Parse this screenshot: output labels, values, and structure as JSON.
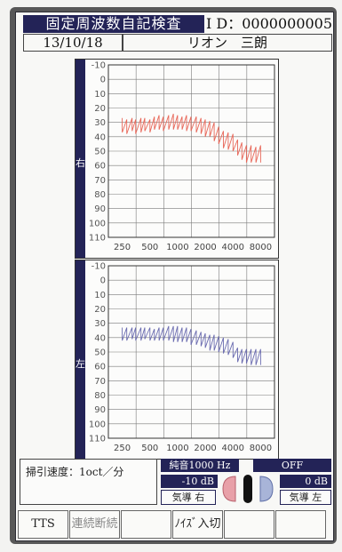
{
  "header": {
    "title": "固定周波数自記検査",
    "id_text": "I D：0000000005",
    "date": "13/10/18",
    "patient_name": "リオン　三朗"
  },
  "audiogram": {
    "y_ticks": [
      "-10",
      "0",
      "10",
      "20",
      "30",
      "40",
      "50",
      "60",
      "70",
      "80",
      "90",
      "100",
      "110"
    ],
    "x_ticks": [
      "250",
      "500",
      "1000",
      "2000",
      "4000",
      "8000"
    ],
    "right_ear": {
      "label": "右",
      "color": "#e8685a"
    },
    "left_ear": {
      "label": "左",
      "color": "#6b6cb0"
    }
  },
  "chart_data": [
    {
      "type": "line",
      "ear": "右",
      "x_categories": [
        "250",
        "500",
        "1000",
        "2000",
        "4000",
        "8000"
      ],
      "ylim": [
        -10,
        115
      ],
      "y_inverted": true,
      "series": [
        {
          "values": [
            [
              250,
              27
            ],
            [
              250,
              37
            ],
            [
              280,
              28
            ],
            [
              280,
              38
            ],
            [
              320,
              27
            ],
            [
              320,
              36
            ],
            [
              350,
              28
            ],
            [
              350,
              38
            ],
            [
              400,
              27
            ],
            [
              400,
              37
            ],
            [
              440,
              27
            ],
            [
              440,
              36
            ],
            [
              500,
              28
            ],
            [
              500,
              37
            ],
            [
              560,
              26
            ],
            [
              560,
              35
            ],
            [
              630,
              25
            ],
            [
              630,
              35
            ],
            [
              700,
              26
            ],
            [
              700,
              36
            ],
            [
              800,
              25
            ],
            [
              800,
              35
            ],
            [
              900,
              24
            ],
            [
              900,
              35
            ],
            [
              1000,
              25
            ],
            [
              1000,
              35
            ],
            [
              1120,
              26
            ],
            [
              1120,
              35
            ],
            [
              1250,
              25
            ],
            [
              1250,
              36
            ],
            [
              1400,
              26
            ],
            [
              1400,
              36
            ],
            [
              1600,
              26
            ],
            [
              1600,
              37
            ],
            [
              1800,
              27
            ],
            [
              1800,
              38
            ],
            [
              2000,
              28
            ],
            [
              2000,
              40
            ],
            [
              2240,
              29
            ],
            [
              2240,
              40
            ],
            [
              2500,
              30
            ],
            [
              2500,
              43
            ],
            [
              2800,
              33
            ],
            [
              2800,
              45
            ],
            [
              3150,
              36
            ],
            [
              3150,
              48
            ],
            [
              3550,
              37
            ],
            [
              3550,
              49
            ],
            [
              4000,
              38
            ],
            [
              4000,
              50
            ],
            [
              4500,
              42
            ],
            [
              4500,
              53
            ],
            [
              5000,
              44
            ],
            [
              5000,
              56
            ],
            [
              5600,
              46
            ],
            [
              5600,
              58
            ],
            [
              6300,
              46
            ],
            [
              6300,
              58
            ],
            [
              7100,
              47
            ],
            [
              7100,
              58
            ],
            [
              8000,
              46
            ],
            [
              8000,
              58
            ]
          ]
        }
      ]
    },
    {
      "type": "line",
      "ear": "左",
      "x_categories": [
        "250",
        "500",
        "1000",
        "2000",
        "4000",
        "8000"
      ],
      "ylim": [
        -10,
        115
      ],
      "y_inverted": true,
      "series": [
        {
          "values": [
            [
              250,
              33
            ],
            [
              250,
              42
            ],
            [
              280,
              33
            ],
            [
              280,
              42
            ],
            [
              320,
              33
            ],
            [
              320,
              41
            ],
            [
              350,
              33
            ],
            [
              350,
              42
            ],
            [
              400,
              33
            ],
            [
              400,
              42
            ],
            [
              440,
              33
            ],
            [
              440,
              41
            ],
            [
              500,
              33
            ],
            [
              500,
              42
            ],
            [
              560,
              34
            ],
            [
              560,
              42
            ],
            [
              630,
              33
            ],
            [
              630,
              42
            ],
            [
              700,
              33
            ],
            [
              700,
              42
            ],
            [
              800,
              32
            ],
            [
              800,
              42
            ],
            [
              900,
              32
            ],
            [
              900,
              43
            ],
            [
              1000,
              32
            ],
            [
              1000,
              43
            ],
            [
              1120,
              33
            ],
            [
              1120,
              43
            ],
            [
              1250,
              33
            ],
            [
              1250,
              43
            ],
            [
              1400,
              34
            ],
            [
              1400,
              45
            ],
            [
              1600,
              35
            ],
            [
              1600,
              45
            ],
            [
              1800,
              36
            ],
            [
              1800,
              46
            ],
            [
              2000,
              37
            ],
            [
              2000,
              47
            ],
            [
              2240,
              38
            ],
            [
              2240,
              49
            ],
            [
              2500,
              38
            ],
            [
              2500,
              49
            ],
            [
              2800,
              39
            ],
            [
              2800,
              50
            ],
            [
              3150,
              40
            ],
            [
              3150,
              51
            ],
            [
              3550,
              41
            ],
            [
              3550,
              52
            ],
            [
              4000,
              43
            ],
            [
              4000,
              54
            ],
            [
              4500,
              47
            ],
            [
              4500,
              57
            ],
            [
              5000,
              48
            ],
            [
              5000,
              58
            ],
            [
              5600,
              48
            ],
            [
              5600,
              58
            ],
            [
              6300,
              48
            ],
            [
              6300,
              59
            ],
            [
              7100,
              48
            ],
            [
              7100,
              59
            ],
            [
              8000,
              48
            ],
            [
              8000,
              59
            ]
          ]
        }
      ]
    }
  ],
  "info": {
    "sweep_speed": "掃引速度：1oct／分",
    "tone": "純音1000 Hz",
    "right_level": "-10 dB",
    "right_route": "気導 右",
    "state": "OFF",
    "left_level": "0 dB",
    "left_route": "気導 左"
  },
  "function_keys": [
    "TTS",
    "連続断続",
    "",
    "ﾉｲｽﾞ入切",
    "",
    ""
  ]
}
